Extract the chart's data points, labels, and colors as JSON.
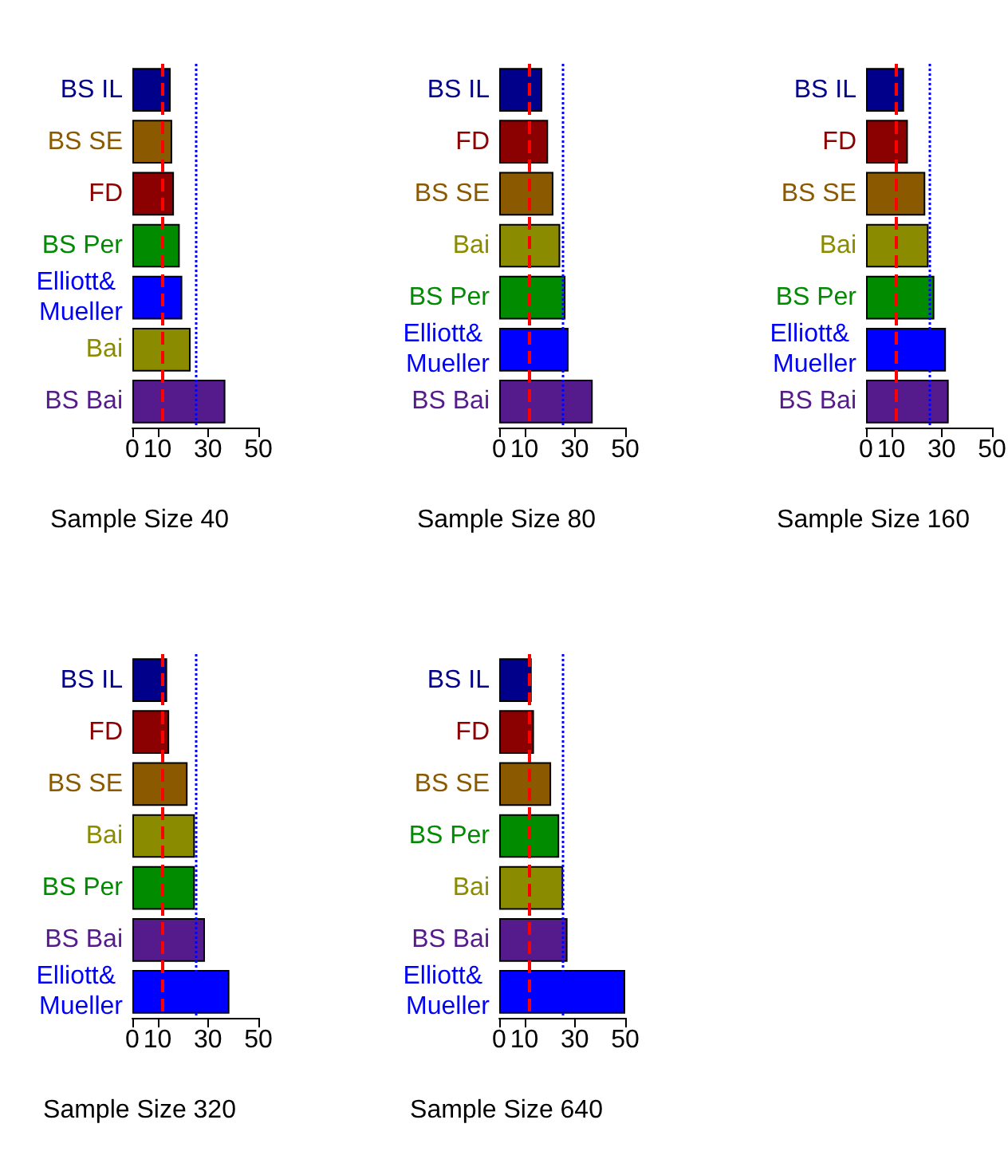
{
  "chart_data": [
    {
      "type": "bar",
      "orientation": "horizontal",
      "xlabel": "Sample Size 40",
      "categories": [
        "BS IL",
        "BS SE",
        "FD",
        "BS Per",
        "Elliott& Mueller",
        "Bai",
        "BS Bai"
      ],
      "values": [
        15.2,
        15.8,
        16.5,
        18.8,
        19.8,
        23.1,
        36.9
      ],
      "colors": [
        "#00008b",
        "#8b5a00",
        "#8b0000",
        "#008b00",
        "#0000ff",
        "#8b8b00",
        "#551a8b"
      ],
      "xlim": [
        0,
        50
      ],
      "xticks": [
        0,
        10,
        30,
        50
      ],
      "grid": false,
      "ref_lines": [
        {
          "axis": "x",
          "value": 12,
          "color": "#ff0000",
          "line_style": "dashed"
        },
        {
          "axis": "x",
          "value": 25,
          "color": "#0000ff",
          "line_style": "dotted"
        }
      ]
    },
    {
      "type": "bar",
      "orientation": "horizontal",
      "xlabel": "Sample Size 80",
      "categories": [
        "BS IL",
        "FD",
        "BS SE",
        "Bai",
        "BS Per",
        "Elliott& Mueller",
        "BS Bai"
      ],
      "values": [
        17.1,
        19.4,
        21.5,
        24.2,
        26.3,
        27.5,
        37.1
      ],
      "colors": [
        "#00008b",
        "#8b0000",
        "#8b5a00",
        "#8b8b00",
        "#008b00",
        "#0000ff",
        "#551a8b"
      ],
      "xlim": [
        0,
        50
      ],
      "xticks": [
        0,
        10,
        30,
        50
      ],
      "grid": false,
      "ref_lines": [
        {
          "axis": "x",
          "value": 12,
          "color": "#ff0000",
          "line_style": "dashed"
        },
        {
          "axis": "x",
          "value": 25,
          "color": "#0000ff",
          "line_style": "dotted"
        }
      ]
    },
    {
      "type": "bar",
      "orientation": "horizontal",
      "xlabel": "Sample Size 160",
      "categories": [
        "BS IL",
        "FD",
        "BS SE",
        "Bai",
        "BS Per",
        "Elliott& Mueller",
        "BS Bai"
      ],
      "values": [
        15.1,
        16.6,
        23.5,
        24.8,
        27.1,
        31.7,
        32.8
      ],
      "colors": [
        "#00008b",
        "#8b0000",
        "#8b5a00",
        "#8b8b00",
        "#008b00",
        "#0000ff",
        "#551a8b"
      ],
      "xlim": [
        0,
        50
      ],
      "xticks": [
        0,
        10,
        30,
        50
      ],
      "grid": false,
      "ref_lines": [
        {
          "axis": "x",
          "value": 12,
          "color": "#ff0000",
          "line_style": "dashed"
        },
        {
          "axis": "x",
          "value": 25,
          "color": "#0000ff",
          "line_style": "dotted"
        }
      ]
    },
    {
      "type": "bar",
      "orientation": "horizontal",
      "xlabel": "Sample Size 320",
      "categories": [
        "BS IL",
        "FD",
        "BS SE",
        "Bai",
        "BS Per",
        "BS Bai",
        "Elliott& Mueller"
      ],
      "values": [
        13.8,
        14.6,
        21.9,
        24.8,
        24.8,
        28.8,
        38.5
      ],
      "colors": [
        "#00008b",
        "#8b0000",
        "#8b5a00",
        "#8b8b00",
        "#008b00",
        "#551a8b",
        "#0000ff"
      ],
      "xlim": [
        0,
        50
      ],
      "xticks": [
        0,
        10,
        30,
        50
      ],
      "grid": false,
      "ref_lines": [
        {
          "axis": "x",
          "value": 12,
          "color": "#ff0000",
          "line_style": "dashed"
        },
        {
          "axis": "x",
          "value": 25,
          "color": "#0000ff",
          "line_style": "dotted"
        }
      ]
    },
    {
      "type": "bar",
      "orientation": "horizontal",
      "xlabel": "Sample Size 640",
      "categories": [
        "BS IL",
        "FD",
        "BS SE",
        "BS Per",
        "Bai",
        "BS Bai",
        "Elliott& Mueller"
      ],
      "values": [
        12.9,
        13.8,
        20.6,
        23.8,
        25.4,
        27.1,
        50
      ],
      "colors": [
        "#00008b",
        "#8b0000",
        "#8b5a00",
        "#008b00",
        "#8b8b00",
        "#551a8b",
        "#0000ff"
      ],
      "xlim": [
        0,
        50
      ],
      "xticks": [
        0,
        10,
        30,
        50
      ],
      "grid": false,
      "ref_lines": [
        {
          "axis": "x",
          "value": 12,
          "color": "#ff0000",
          "line_style": "dashed"
        },
        {
          "axis": "x",
          "value": 25,
          "color": "#0000ff",
          "line_style": "dotted"
        }
      ]
    }
  ]
}
